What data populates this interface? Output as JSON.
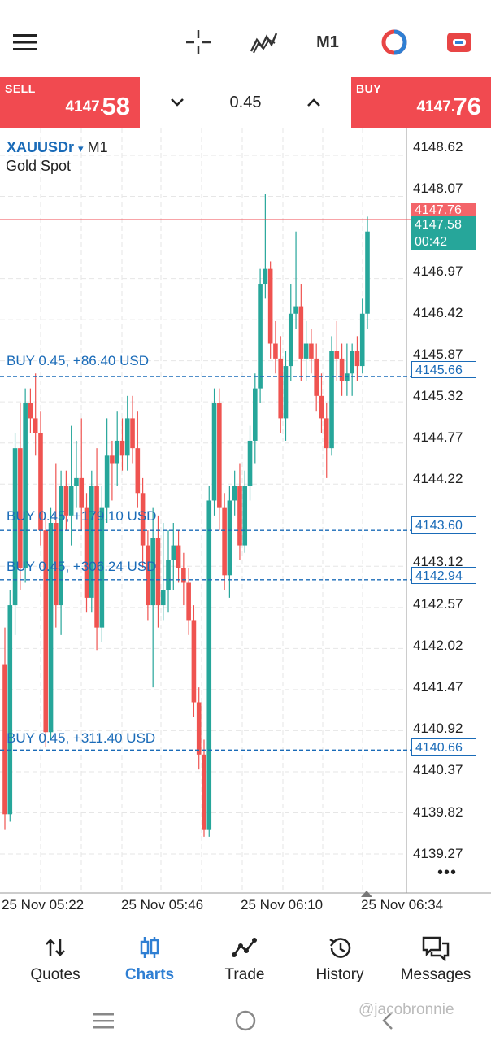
{
  "topbar": {
    "timeframe": "M1",
    "icons": [
      "menu-icon",
      "crosshair-icon",
      "indicators-icon",
      "timeframe-button",
      "color-scheme-icon",
      "objects-icon"
    ]
  },
  "trade": {
    "sell_label": "SELL",
    "sell_price_small": "4147.",
    "sell_price_big": "58",
    "buy_label": "BUY",
    "buy_price_small": "4147.",
    "buy_price_big": "76",
    "volume": "0.45"
  },
  "chart": {
    "symbol": "XAUUSDr",
    "symbol_arrow": "▾",
    "timeframe": "M1",
    "description": "Gold Spot",
    "price_axis": [
      "4148.62",
      "4148.07",
      "4146.97",
      "4146.42",
      "4145.87",
      "4145.32",
      "4144.77",
      "4144.22",
      "4143.12",
      "4142.57",
      "4142.02",
      "4141.47",
      "4140.92",
      "4140.37",
      "4139.82",
      "4139.27"
    ],
    "time_axis": [
      "25 Nov 05:22",
      "25 Nov 05:46",
      "25 Nov 06:10",
      "25 Nov 06:34"
    ],
    "ask_tag": "4147.76",
    "bid_tag": "4147.58",
    "countdown": "00:42",
    "more": "•••",
    "positions": [
      {
        "label": "BUY 0.45,  +86.40 USD",
        "price": "4145.66"
      },
      {
        "label": "BUY 0.45,  +179.10 USD",
        "price": "4143.60"
      },
      {
        "label": "BUY 0.45,  +306.24 USD",
        "price": "4142.94"
      },
      {
        "label": "BUY 0.45,  +311.40 USD",
        "price": "4140.66"
      }
    ],
    "colors": {
      "bull": "#26a69a",
      "bear": "#ef5350",
      "ask": "#f14a50",
      "bid": "#26a69a",
      "position": "#1a6bb8"
    }
  },
  "chart_data": {
    "type": "candlestick",
    "ylim": [
      4139.0,
      4148.9
    ],
    "candles": [
      [
        4141.8,
        4142.3,
        4139.6,
        4139.8
      ],
      [
        4139.8,
        4142.8,
        4139.7,
        4142.6
      ],
      [
        4142.6,
        4144.9,
        4142.2,
        4144.7
      ],
      [
        4144.7,
        4145.3,
        4142.8,
        4143.1
      ],
      [
        4143.1,
        4145.5,
        4142.9,
        4145.3
      ],
      [
        4145.3,
        4145.5,
        4144.9,
        4145.1
      ],
      [
        4145.1,
        4145.7,
        4144.6,
        4144.9
      ],
      [
        4144.9,
        4145.2,
        4143.4,
        4143.6
      ],
      [
        4143.6,
        4143.8,
        4140.7,
        4140.9
      ],
      [
        4140.9,
        4143.9,
        4140.8,
        4143.7
      ],
      [
        4143.7,
        4144.5,
        4142.3,
        4142.6
      ],
      [
        4142.6,
        4144.4,
        4142.2,
        4144.2
      ],
      [
        4144.2,
        4144.4,
        4143.6,
        4143.8
      ],
      [
        4143.8,
        4145.0,
        4143.4,
        4144.2
      ],
      [
        4144.2,
        4144.8,
        4143.9,
        4144.3
      ],
      [
        4144.3,
        4145.1,
        4143.6,
        4143.9
      ],
      [
        4143.9,
        4144.1,
        4142.5,
        4142.7
      ],
      [
        4142.7,
        4144.4,
        4142.5,
        4144.2
      ],
      [
        4144.2,
        4144.7,
        4142.0,
        4142.3
      ],
      [
        4142.3,
        4144.2,
        4142.1,
        4143.9
      ],
      [
        4143.9,
        4145.1,
        4143.7,
        4144.6
      ],
      [
        4144.6,
        4144.8,
        4144.0,
        4144.5
      ],
      [
        4144.5,
        4145.2,
        4144.2,
        4144.8
      ],
      [
        4144.8,
        4145.1,
        4144.4,
        4144.6
      ],
      [
        4144.6,
        4145.4,
        4144.4,
        4145.1
      ],
      [
        4145.1,
        4145.4,
        4144.5,
        4144.7
      ],
      [
        4144.7,
        4145.2,
        4143.9,
        4144.1
      ],
      [
        4144.1,
        4144.3,
        4143.1,
        4143.4
      ],
      [
        4143.4,
        4143.6,
        4142.4,
        4142.6
      ],
      [
        4142.6,
        4143.9,
        4141.5,
        4143.5
      ],
      [
        4143.5,
        4143.8,
        4142.3,
        4142.6
      ],
      [
        4142.6,
        4143.7,
        4142.4,
        4142.8
      ],
      [
        4142.8,
        4143.6,
        4142.5,
        4143.2
      ],
      [
        4143.2,
        4143.7,
        4142.8,
        4143.4
      ],
      [
        4143.4,
        4143.6,
        4142.9,
        4143.1
      ],
      [
        4143.1,
        4143.3,
        4142.6,
        4142.9
      ],
      [
        4142.9,
        4143.1,
        4142.2,
        4142.4
      ],
      [
        4142.4,
        4142.6,
        4141.1,
        4141.3
      ],
      [
        4141.3,
        4141.5,
        4140.4,
        4140.6
      ],
      [
        4140.6,
        4140.8,
        4139.5,
        4139.6
      ],
      [
        4139.6,
        4144.2,
        4139.5,
        4144.0
      ],
      [
        4144.0,
        4145.5,
        4143.8,
        4145.3
      ],
      [
        4145.3,
        4145.5,
        4143.6,
        4143.9
      ],
      [
        4143.9,
        4144.1,
        4142.8,
        4143.0
      ],
      [
        4143.0,
        4144.2,
        4142.7,
        4144.0
      ],
      [
        4144.0,
        4144.4,
        4143.8,
        4144.2
      ],
      [
        4144.2,
        4144.5,
        4143.2,
        4143.4
      ],
      [
        4143.4,
        4144.4,
        4143.3,
        4144.2
      ],
      [
        4144.2,
        4145.0,
        4144.0,
        4144.8
      ],
      [
        4144.8,
        4145.7,
        4144.5,
        4145.5
      ],
      [
        4145.5,
        4147.1,
        4145.3,
        4146.9
      ],
      [
        4146.9,
        4148.1,
        4146.7,
        4147.1
      ],
      [
        4147.1,
        4147.2,
        4145.9,
        4146.1
      ],
      [
        4146.1,
        4146.4,
        4145.7,
        4145.9
      ],
      [
        4145.9,
        4146.2,
        4144.9,
        4145.1
      ],
      [
        4145.1,
        4146.0,
        4144.8,
        4145.8
      ],
      [
        4145.8,
        4146.9,
        4145.6,
        4146.5
      ],
      [
        4146.5,
        4147.6,
        4146.3,
        4146.6
      ],
      [
        4146.6,
        4146.9,
        4145.6,
        4145.9
      ],
      [
        4145.9,
        4146.4,
        4145.6,
        4146.1
      ],
      [
        4146.1,
        4146.3,
        4145.7,
        4145.9
      ],
      [
        4145.9,
        4146.1,
        4145.2,
        4145.4
      ],
      [
        4145.4,
        4145.7,
        4144.9,
        4145.1
      ],
      [
        4145.1,
        4145.3,
        4144.3,
        4144.7
      ],
      [
        4144.7,
        4146.2,
        4144.6,
        4146.0
      ],
      [
        4146.0,
        4146.4,
        4145.6,
        4145.9
      ],
      [
        4145.9,
        4146.1,
        4145.4,
        4145.6
      ],
      [
        4145.6,
        4146.1,
        4145.4,
        4145.7
      ],
      [
        4145.7,
        4146.1,
        4145.4,
        4146.0
      ],
      [
        4146.0,
        4146.2,
        4145.6,
        4145.8
      ],
      [
        4145.8,
        4146.7,
        4145.7,
        4146.5
      ],
      [
        4146.5,
        4147.8,
        4146.3,
        4147.6
      ]
    ]
  },
  "nav": {
    "items": [
      {
        "label": "Quotes",
        "icon": "quotes-icon"
      },
      {
        "label": "Charts",
        "icon": "charts-icon"
      },
      {
        "label": "Trade",
        "icon": "trade-icon"
      },
      {
        "label": "History",
        "icon": "history-icon"
      },
      {
        "label": "Messages",
        "icon": "messages-icon"
      }
    ],
    "active_color": "#2f7fd3"
  },
  "watermark": "@jacobronnie"
}
